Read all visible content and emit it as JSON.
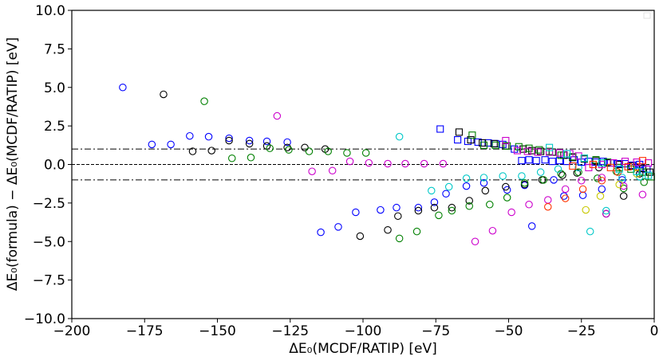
{
  "chart_data": {
    "type": "scatter",
    "title": "",
    "xlabel": "ΔE₀(MCDF/RATIP) [eV]",
    "ylabel": "ΔE₀(formula) − ΔE₀(MCDF/RATIP) [eV]",
    "xlim": [
      -200,
      0
    ],
    "ylim": [
      -10,
      10
    ],
    "x_ticks": [
      -200,
      -175,
      -150,
      -125,
      -100,
      -75,
      -50,
      -25,
      0
    ],
    "x_tick_labels": [
      "−200",
      "−175",
      "−150",
      "−125",
      "−100",
      "−75",
      "−50",
      "−25",
      "0"
    ],
    "y_ticks": [
      -10,
      -7.5,
      -5,
      -2.5,
      0,
      2.5,
      5,
      7.5,
      10
    ],
    "y_tick_labels": [
      "−10.0",
      "−7.5",
      "−5.0",
      "−2.5",
      "0.0",
      "2.5",
      "5.0",
      "7.5",
      "10.0"
    ],
    "grid": false,
    "legend": "top-right (empty)",
    "reference_lines": [
      {
        "y": 0,
        "style": "dashed"
      },
      {
        "y": 1,
        "style": "dashdot"
      },
      {
        "y": -1,
        "style": "dashdot"
      }
    ],
    "series": [
      {
        "name": "circle-blue",
        "marker": "circle",
        "color": "#0000ff",
        "points": [
          [
            -182.5,
            5.0
          ],
          [
            -172.5,
            1.3
          ],
          [
            -166,
            1.3
          ],
          [
            -159.5,
            1.85
          ],
          [
            -153,
            1.8
          ],
          [
            -146,
            1.7
          ],
          [
            -139,
            1.55
          ],
          [
            -133,
            1.5
          ],
          [
            -126,
            1.45
          ],
          [
            -114.5,
            -4.4
          ],
          [
            -108.5,
            -4.05
          ],
          [
            -102.5,
            -3.1
          ],
          [
            -94,
            -2.95
          ],
          [
            -88.5,
            -2.8
          ],
          [
            -81,
            -2.8
          ],
          [
            -75.5,
            -2.45
          ],
          [
            -71.5,
            -1.9
          ],
          [
            -64.5,
            -1.4
          ],
          [
            -58.5,
            -1.2
          ],
          [
            -50.5,
            -1.65
          ],
          [
            -44.5,
            -1.35
          ],
          [
            -42,
            -4.0
          ],
          [
            -34.5,
            -1.0
          ],
          [
            -31,
            -2.05
          ],
          [
            -24.5,
            -2.0
          ],
          [
            -18,
            -1.6
          ],
          [
            -11,
            -1.0
          ],
          [
            -5,
            -0.3
          ]
        ]
      },
      {
        "name": "circle-black",
        "marker": "circle",
        "color": "#000000",
        "points": [
          [
            -168.5,
            4.55
          ],
          [
            -158.5,
            0.85
          ],
          [
            -152,
            0.9
          ],
          [
            -146,
            1.55
          ],
          [
            -139,
            1.35
          ],
          [
            -133,
            1.2
          ],
          [
            -126,
            1.1
          ],
          [
            -120,
            1.1
          ],
          [
            -113,
            1.0
          ],
          [
            -101,
            -4.65
          ],
          [
            -91.5,
            -4.25
          ],
          [
            -88,
            -3.35
          ],
          [
            -81,
            -3.0
          ],
          [
            -75.5,
            -2.8
          ],
          [
            -69.5,
            -2.8
          ],
          [
            -63.5,
            -2.35
          ],
          [
            -58,
            -1.7
          ],
          [
            -51,
            -1.45
          ],
          [
            -44.5,
            -1.3
          ],
          [
            -38.5,
            -1.0
          ],
          [
            -31.5,
            -0.7
          ],
          [
            -26.5,
            -0.55
          ],
          [
            -19,
            -0.2
          ],
          [
            -16.5,
            -3.2
          ],
          [
            -10.5,
            -2.05
          ],
          [
            -5,
            -0.6
          ]
        ]
      },
      {
        "name": "circle-green",
        "marker": "circle",
        "color": "#008000",
        "points": [
          [
            -154.5,
            4.1
          ],
          [
            -145,
            0.4
          ],
          [
            -138.5,
            0.45
          ],
          [
            -132,
            1.05
          ],
          [
            -125.5,
            0.95
          ],
          [
            -118.5,
            0.85
          ],
          [
            -112,
            0.85
          ],
          [
            -105.5,
            0.75
          ],
          [
            -99,
            0.75
          ],
          [
            -87.5,
            -4.8
          ],
          [
            -81.5,
            -4.35
          ],
          [
            -74,
            -3.3
          ],
          [
            -69.5,
            -3.0
          ],
          [
            -63.5,
            -2.7
          ],
          [
            -56.5,
            -2.6
          ],
          [
            -50.5,
            -2.15
          ],
          [
            -44.5,
            -1.2
          ],
          [
            -38,
            -1.0
          ],
          [
            -32,
            -0.6
          ],
          [
            -26,
            -0.5
          ],
          [
            -19.5,
            -0.9
          ],
          [
            -13,
            -0.45
          ],
          [
            -10.5,
            -1.55
          ],
          [
            -3.5,
            -1.15
          ]
        ]
      },
      {
        "name": "circle-magenta",
        "marker": "circle",
        "color": "#cc00cc",
        "points": [
          [
            -129.5,
            3.15
          ],
          [
            -117.5,
            -0.45
          ],
          [
            -110.5,
            -0.4
          ],
          [
            -104.5,
            0.2
          ],
          [
            -98,
            0.1
          ],
          [
            -91.5,
            0.05
          ],
          [
            -85.5,
            0.05
          ],
          [
            -79,
            0.05
          ],
          [
            -72.5,
            0.05
          ],
          [
            -61.5,
            -5.0
          ],
          [
            -55.5,
            -4.3
          ],
          [
            -49,
            -3.1
          ],
          [
            -43,
            -2.6
          ],
          [
            -36.5,
            -2.3
          ],
          [
            -30.5,
            -1.6
          ],
          [
            -25,
            -1.05
          ],
          [
            -18,
            -0.85
          ],
          [
            -16.5,
            -3.2
          ],
          [
            -10.5,
            -1.4
          ],
          [
            -4,
            -1.95
          ]
        ]
      },
      {
        "name": "circle-cyan",
        "marker": "circle",
        "color": "#00c8c8",
        "points": [
          [
            -87.5,
            1.8
          ],
          [
            -76.5,
            -1.7
          ],
          [
            -70.5,
            -1.45
          ],
          [
            -64.5,
            -0.9
          ],
          [
            -58.5,
            -0.85
          ],
          [
            -52,
            -0.75
          ],
          [
            -45.5,
            -0.75
          ],
          [
            -39,
            -0.5
          ],
          [
            -33,
            -0.3
          ],
          [
            -26,
            -0.2
          ],
          [
            -22,
            -4.35
          ],
          [
            -16.5,
            -3.0
          ],
          [
            -11,
            -0.85
          ],
          [
            -5,
            -0.8
          ]
        ]
      },
      {
        "name": "circle-red",
        "marker": "circle",
        "color": "#ff3300",
        "points": [
          [
            -36.5,
            -2.75
          ],
          [
            -30.5,
            -2.2
          ],
          [
            -24.5,
            -1.6
          ],
          [
            -18,
            -1.05
          ],
          [
            -12.5,
            -0.5
          ],
          [
            -6,
            -0.15
          ]
        ]
      },
      {
        "name": "circle-yellow",
        "marker": "circle",
        "color": "#c8c800",
        "points": [
          [
            -23.5,
            -2.95
          ],
          [
            -18.5,
            -2.05
          ],
          [
            -12,
            -1.3
          ],
          [
            -6,
            -0.6
          ]
        ]
      },
      {
        "name": "square-blue",
        "marker": "square",
        "color": "#0000ff",
        "points": [
          [
            -73.5,
            2.3
          ],
          [
            -67.5,
            1.6
          ],
          [
            -64,
            1.5
          ],
          [
            -60.5,
            1.45
          ],
          [
            -57,
            1.4
          ],
          [
            -54.5,
            1.35
          ],
          [
            -52,
            1.3
          ],
          [
            -48,
            1.0
          ],
          [
            -45.5,
            0.25
          ],
          [
            -43,
            0.3
          ],
          [
            -40.5,
            0.25
          ],
          [
            -37.5,
            0.3
          ],
          [
            -35,
            0.2
          ],
          [
            -32.5,
            0.25
          ],
          [
            -30,
            0.2
          ],
          [
            -27.5,
            0.3
          ],
          [
            -25,
            0.15
          ],
          [
            -22.5,
            0.2
          ],
          [
            -20,
            0.15
          ],
          [
            -17.5,
            0.2
          ],
          [
            -15,
            0.1
          ],
          [
            -12.5,
            0.05
          ],
          [
            -10,
            0.05
          ],
          [
            -7.5,
            -0.05
          ],
          [
            -5,
            0.0
          ],
          [
            -2.5,
            -0.3
          ]
        ]
      },
      {
        "name": "square-black",
        "marker": "square",
        "color": "#000000",
        "points": [
          [
            -67,
            2.1
          ],
          [
            -63,
            1.6
          ],
          [
            -59,
            1.4
          ],
          [
            -55,
            1.35
          ],
          [
            -51,
            1.2
          ],
          [
            -45,
            1.0
          ],
          [
            -42,
            0.9
          ],
          [
            -39,
            0.85
          ],
          [
            -35,
            0.8
          ],
          [
            -31,
            0.6
          ],
          [
            -28,
            0.45
          ],
          [
            -24,
            0.35
          ],
          [
            -20,
            0.25
          ],
          [
            -16,
            0.1
          ],
          [
            -12,
            0.0
          ],
          [
            -8,
            -0.1
          ],
          [
            -4,
            -0.25
          ],
          [
            -1.5,
            -0.5
          ]
        ]
      },
      {
        "name": "square-green",
        "marker": "square",
        "color": "#008000",
        "points": [
          [
            -62.5,
            1.9
          ],
          [
            -58.5,
            1.25
          ],
          [
            -54.5,
            1.25
          ],
          [
            -50.5,
            1.2
          ],
          [
            -46.5,
            1.15
          ],
          [
            -43,
            1.05
          ],
          [
            -39.5,
            0.95
          ],
          [
            -36,
            0.85
          ],
          [
            -32,
            0.6
          ],
          [
            -28,
            0.5
          ],
          [
            -24,
            0.4
          ],
          [
            -20,
            0.3
          ],
          [
            -16,
            0.15
          ],
          [
            -12,
            -0.2
          ],
          [
            -8,
            -0.3
          ],
          [
            -4,
            -0.5
          ],
          [
            -1,
            -0.8
          ]
        ]
      },
      {
        "name": "square-magenta",
        "marker": "square",
        "color": "#cc00cc",
        "points": [
          [
            -51,
            1.55
          ],
          [
            -47,
            0.9
          ],
          [
            -43.5,
            0.85
          ],
          [
            -40,
            0.8
          ],
          [
            -36,
            0.8
          ],
          [
            -32.5,
            0.75
          ],
          [
            -29,
            0.7
          ],
          [
            -26,
            0.55
          ],
          [
            -22.5,
            -0.2
          ],
          [
            -18,
            0.0
          ],
          [
            -14,
            0.1
          ],
          [
            -10,
            0.2
          ],
          [
            -6,
            0.15
          ],
          [
            -2,
            0.1
          ]
        ]
      },
      {
        "name": "square-cyan",
        "marker": "square",
        "color": "#00c8c8",
        "points": [
          [
            -36,
            1.1
          ],
          [
            -30,
            0.7
          ],
          [
            -24,
            0.4
          ],
          [
            -18,
            0.1
          ],
          [
            -12,
            -0.3
          ],
          [
            -6,
            -0.45
          ],
          [
            -2,
            -0.7
          ]
        ]
      },
      {
        "name": "square-red",
        "marker": "square",
        "color": "#ff3300",
        "points": [
          [
            -28,
            -0.1
          ],
          [
            -21,
            0.0
          ],
          [
            -15,
            -0.2
          ],
          [
            -9,
            -0.15
          ],
          [
            -4,
            0.25
          ]
        ]
      }
    ]
  }
}
